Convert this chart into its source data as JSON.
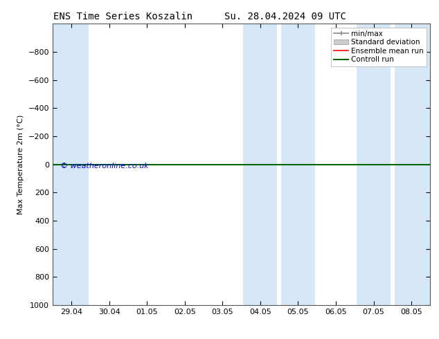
{
  "title_left": "ENS Time Series Koszalin",
  "title_right": "Su. 28.04.2024 09 UTC",
  "ylabel": "Max Temperature 2m (°C)",
  "ylim_bottom": 1000,
  "ylim_top": -1000,
  "yticks": [
    -800,
    -600,
    -400,
    -200,
    0,
    200,
    400,
    600,
    800,
    1000
  ],
  "xtick_labels": [
    "29.04",
    "30.04",
    "01.05",
    "02.05",
    "03.05",
    "04.05",
    "05.05",
    "06.05",
    "07.05",
    "08.05"
  ],
  "n_xticks": 10,
  "xlim": [
    0,
    9
  ],
  "shaded_regions": [
    {
      "xmin": -0.5,
      "xmax": 0.45,
      "color": "#d6e8f7"
    },
    {
      "xmin": 4.55,
      "xmax": 5.45,
      "color": "#d6e8f7"
    },
    {
      "xmin": 5.55,
      "xmax": 6.45,
      "color": "#d6e8f7"
    },
    {
      "xmin": 7.55,
      "xmax": 8.45,
      "color": "#d6e8f7"
    },
    {
      "xmin": 8.55,
      "xmax": 9.5,
      "color": "#d6e8f7"
    }
  ],
  "control_run_y": 0,
  "ensemble_mean_y": 0,
  "watermark": "© weatheronline.co.uk",
  "watermark_color": "#0000cc",
  "background_color": "#ffffff",
  "plot_bg_color": "#ffffff",
  "legend_items": [
    {
      "label": "min/max",
      "color": "#888888",
      "lw": 1.2
    },
    {
      "label": "Standard deviation",
      "color": "#cccccc",
      "lw": 8
    },
    {
      "label": "Ensemble mean run",
      "color": "#ff0000",
      "lw": 1.2
    },
    {
      "label": "Controll run",
      "color": "#006600",
      "lw": 1.5
    }
  ],
  "title_fontsize": 10,
  "axis_fontsize": 8,
  "tick_fontsize": 8,
  "legend_fontsize": 7.5
}
